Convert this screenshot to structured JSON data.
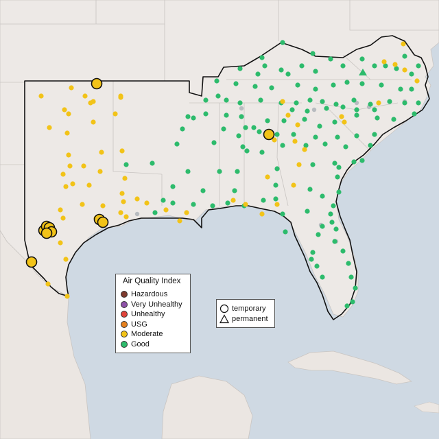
{
  "aqi_legend": {
    "title": "Air Quality Index",
    "categories": [
      {
        "label": "Hazardous",
        "color": "#7e3a2e"
      },
      {
        "label": "Very Unhealthy",
        "color": "#8e52a8"
      },
      {
        "label": "Unhealthy",
        "color": "#e0433a"
      },
      {
        "label": "USG",
        "color": "#e5801e"
      },
      {
        "label": "Moderate",
        "color": "#f2c318"
      },
      {
        "label": "Good",
        "color": "#2dbb6c"
      }
    ]
  },
  "monitor_type_legend": {
    "items": [
      {
        "label": "temporary",
        "symbol": "circle-icon"
      },
      {
        "label": "permanent",
        "symbol": "triangle-icon"
      }
    ]
  },
  "colors": {
    "ocean": "#cfd9e3",
    "land": "#ede9e6",
    "border": "#111111",
    "moderate": "#f2c318",
    "good": "#2dbb6c",
    "no_data": "#b8bcc0"
  }
}
